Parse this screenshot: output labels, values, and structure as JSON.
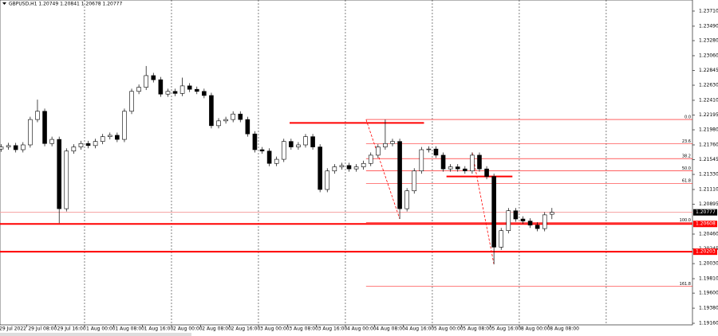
{
  "chart_data": {
    "type": "candlestick",
    "title": "GBPUSD,H1  1.20749 1.20841 1.20678 1.20777",
    "x": [
      1,
      3,
      5,
      7,
      9,
      11,
      13,
      15,
      17,
      19,
      21,
      23,
      25,
      27,
      29,
      31,
      33,
      35,
      37,
      39,
      41,
      43,
      45,
      47,
      49,
      51,
      53,
      55,
      57,
      59,
      61,
      63,
      65,
      67,
      69,
      71,
      73,
      75,
      77,
      79,
      81,
      83,
      85,
      87,
      89,
      91,
      93,
      95,
      97,
      99,
      101,
      103,
      105,
      107,
      109,
      111,
      113,
      115,
      117,
      119,
      121,
      123,
      125,
      127,
      129,
      131,
      133,
      135,
      137,
      139,
      141,
      143,
      145,
      147,
      149,
      151,
      153
    ],
    "open": [
      1.217,
      1.2173,
      1.2175,
      1.2169,
      1.2176,
      1.2213,
      1.2225,
      1.2178,
      1.2184,
      1.2083,
      1.2167,
      1.2173,
      1.2178,
      1.2175,
      1.2181,
      1.2188,
      1.219,
      1.2184,
      1.2225,
      1.2254,
      1.226,
      1.2277,
      1.2271,
      1.225,
      1.2254,
      1.2251,
      1.2262,
      1.2257,
      1.2254,
      1.2248,
      1.2204,
      1.2211,
      1.2213,
      1.2221,
      1.2213,
      1.2192,
      1.2169,
      1.2167,
      1.2149,
      1.2155,
      1.2181,
      1.2173,
      1.2176,
      1.2188,
      1.2173,
      1.2111,
      1.2138,
      1.2144,
      1.2146,
      1.2141,
      1.2144,
      1.2149,
      1.2161,
      1.2173,
      1.2178,
      1.2181,
      1.2083,
      1.2109,
      1.2138,
      1.2169,
      1.217,
      1.2161,
      1.2141,
      1.2144,
      1.2141,
      1.2138,
      1.2161,
      1.2141,
      1.213,
      1.2027,
      1.2051,
      1.208,
      1.2068,
      1.2065,
      1.2059,
      1.2054,
      1.20749
    ],
    "high": [
      1.2177,
      1.2179,
      1.2179,
      1.218,
      1.2217,
      1.2242,
      1.2229,
      1.2188,
      1.2188,
      1.2171,
      1.2177,
      1.2182,
      1.2182,
      1.2185,
      1.2192,
      1.2194,
      1.2194,
      1.2229,
      1.2258,
      1.2264,
      1.2291,
      1.2281,
      1.2275,
      1.2258,
      1.2258,
      1.2274,
      1.2266,
      1.2261,
      1.2258,
      1.2252,
      1.2215,
      1.2217,
      1.2225,
      1.2225,
      1.2217,
      1.2196,
      1.2173,
      1.2171,
      1.2159,
      1.2185,
      1.2185,
      1.218,
      1.2192,
      1.2192,
      1.2177,
      1.2142,
      1.2148,
      1.215,
      1.215,
      1.2148,
      1.2153,
      1.2165,
      1.2177,
      1.2213,
      1.2185,
      1.2185,
      1.2113,
      1.2142,
      1.2173,
      1.2174,
      1.2174,
      1.2165,
      1.2148,
      1.2148,
      1.2145,
      1.2165,
      1.2165,
      1.2145,
      1.2134,
      1.2055,
      1.2084,
      1.2084,
      1.2072,
      1.2069,
      1.2063,
      1.2078,
      1.20841
    ],
    "low": [
      1.2166,
      1.2169,
      1.2165,
      1.2165,
      1.2172,
      1.2209,
      1.2174,
      1.2174,
      1.2062,
      1.2079,
      1.2163,
      1.2169,
      1.2171,
      1.2171,
      1.2177,
      1.2184,
      1.218,
      1.218,
      1.2221,
      1.225,
      1.2256,
      1.2267,
      1.2246,
      1.2246,
      1.2247,
      1.2247,
      1.2253,
      1.225,
      1.2244,
      1.22,
      1.22,
      1.2207,
      1.2209,
      1.2209,
      1.2188,
      1.2165,
      1.2163,
      1.2145,
      1.2145,
      1.2151,
      1.2169,
      1.2169,
      1.2172,
      1.2169,
      1.2107,
      1.2107,
      1.2134,
      1.214,
      1.2137,
      1.2137,
      1.214,
      1.2145,
      1.2157,
      1.2169,
      1.2174,
      1.2068,
      1.2079,
      1.2105,
      1.2134,
      1.2165,
      1.2157,
      1.2137,
      1.2137,
      1.2137,
      1.2134,
      1.2134,
      1.2137,
      1.2126,
      1.2002,
      1.2023,
      1.2047,
      1.2064,
      1.2061,
      1.2055,
      1.205,
      1.205,
      1.20678
    ],
    "close": [
      1.2173,
      1.2175,
      1.2169,
      1.2176,
      1.2213,
      1.2225,
      1.2178,
      1.2184,
      1.2083,
      1.2167,
      1.2173,
      1.2178,
      1.2175,
      1.2181,
      1.2188,
      1.219,
      1.2184,
      1.2225,
      1.2254,
      1.226,
      1.2277,
      1.2271,
      1.225,
      1.2254,
      1.2251,
      1.2262,
      1.2257,
      1.2254,
      1.2248,
      1.2204,
      1.2211,
      1.2213,
      1.2221,
      1.2213,
      1.2192,
      1.2169,
      1.2167,
      1.2149,
      1.2155,
      1.2181,
      1.2173,
      1.2176,
      1.2188,
      1.2173,
      1.2111,
      1.2138,
      1.2144,
      1.2146,
      1.2141,
      1.2144,
      1.2149,
      1.2161,
      1.2173,
      1.2178,
      1.2181,
      1.2083,
      1.2109,
      1.2138,
      1.2169,
      1.217,
      1.2161,
      1.2141,
      1.2144,
      1.2141,
      1.2138,
      1.2161,
      1.2141,
      1.213,
      1.2027,
      1.2051,
      1.208,
      1.2068,
      1.2065,
      1.2059,
      1.2054,
      1.2074,
      1.20777
    ],
    "xlim": [
      0.66,
      191.8
    ],
    "ylim": [
      1.19137,
      1.23872
    ],
    "xticks": [
      {
        "value": 0,
        "label": "29 Jul 2022"
      },
      {
        "value": 8,
        "label": "29 Jul 08:00"
      },
      {
        "value": 16,
        "label": "29 Jul 16:00"
      },
      {
        "value": 24,
        "label": "1 Aug 00:00"
      },
      {
        "value": 32,
        "label": "1 Aug 08:00"
      },
      {
        "value": 40,
        "label": "1 Aug 16:00"
      },
      {
        "value": 48,
        "label": "2 Aug 00:00"
      },
      {
        "value": 56,
        "label": "2 Aug 08:00"
      },
      {
        "value": 64,
        "label": "2 Aug 16:00"
      },
      {
        "value": 72,
        "label": "3 Aug 00:00"
      },
      {
        "value": 80,
        "label": "3 Aug 08:00"
      },
      {
        "value": 88,
        "label": "3 Aug 16:00"
      },
      {
        "value": 96,
        "label": "4 Aug 00:00"
      },
      {
        "value": 104,
        "label": "4 Aug 08:00"
      },
      {
        "value": 112,
        "label": "4 Aug 16:00"
      },
      {
        "value": 120,
        "label": "5 Aug 00:00"
      },
      {
        "value": 128,
        "label": "5 Aug 08:00"
      },
      {
        "value": 136,
        "label": "5 Aug 16:00"
      },
      {
        "value": 144,
        "label": "8 Aug 00:00"
      },
      {
        "value": 152,
        "label": "8 Aug 08:00"
      }
    ],
    "period_separators": [
      24,
      48,
      72,
      96,
      120,
      144,
      168
    ],
    "yticks": [
      {
        "value": 1.2371,
        "label": "1.23710"
      },
      {
        "value": 1.2349,
        "label": "1.23490"
      },
      {
        "value": 1.2328,
        "label": "1.23280"
      },
      {
        "value": 1.2306,
        "label": "1.23060"
      },
      1.22845,
      {
        "value": 1.2263,
        "label": "1.22630"
      },
      {
        "value": 1.2241,
        "label": "1.22410"
      },
      1.22195,
      {
        "value": 1.2198,
        "label": "1.21980"
      },
      {
        "value": 1.2176,
        "label": "1.21760"
      },
      1.21545,
      {
        "value": 1.2133,
        "label": "1.21330"
      },
      {
        "value": 1.2111,
        "label": "1.21110"
      },
      1.20895,
      {
        "value": 1.2046,
        "label": "1.20460"
      },
      1.20245,
      {
        "value": 1.2003,
        "label": "1.20030"
      },
      {
        "value": 1.1981,
        "label": "1.19810"
      },
      {
        "value": 1.196,
        "label": "1.19600"
      },
      {
        "value": 1.1938,
        "label": "1.19380"
      },
      {
        "value": 1.1916,
        "label": "1.19160"
      }
    ],
    "price_lines": [
      {
        "value": 1.20777,
        "color": "#f4a0a0",
        "tag_color": "#000000",
        "width": 1
      },
      {
        "value": 1.20608,
        "color": "#ff0000",
        "tag_color": "#ff0000",
        "width": 2
      },
      {
        "value": 1.20203,
        "color": "#ff0000",
        "tag_color": "#ff0000",
        "width": 2
      }
    ],
    "trend_lines": [
      {
        "x": [
          80.6,
          117.7
        ],
        "prices": [
          1.2208,
          1.2208
        ],
        "color": "#ff0000",
        "width": 2,
        "dashed": false
      },
      {
        "x": [
          123.9,
          142.1
        ],
        "prices": [
          1.213,
          1.213
        ],
        "color": "#ff0000",
        "width": 2,
        "dashed": false
      },
      {
        "x": [
          101.7,
          111
        ],
        "prices": [
          1.2213,
          1.2068
        ],
        "color": "#ff0000",
        "width": 0.8,
        "dashed": true
      },
      {
        "x": [
          131,
          137
        ],
        "prices": [
          1.2165,
          1.2002
        ],
        "color": "#ff0000",
        "width": 0.8,
        "dashed": true
      }
    ],
    "fibonacci": {
      "x0": 101.7,
      "color": "#ff0000",
      "levels": [
        {
          "ratio": {
            "value": 0,
            "label": "0.0"
          },
          "price": 1.2213
        },
        {
          "ratio": 23.6,
          "price": 1.2178
        },
        {
          "ratio": 38.2,
          "price": 1.2156
        },
        {
          "ratio": {
            "value": 50,
            "label": "50.0"
          },
          "price": 1.2138
        },
        {
          "ratio": 61.8,
          "price": 1.212
        },
        {
          "ratio": {
            "value": 100,
            "label": "100.0"
          },
          "price": 1.2063
        },
        {
          "ratio": 161.8,
          "price": 1.197
        }
      ]
    },
    "bull_color": "#ffffff",
    "bear_color": "#000000",
    "outline_color": "#000000"
  }
}
